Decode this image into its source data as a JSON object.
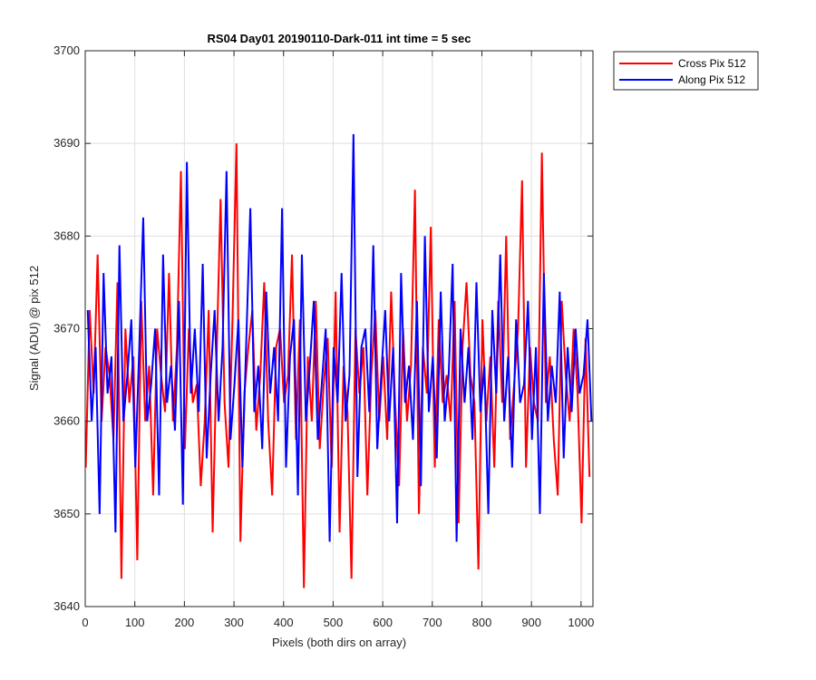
{
  "chart_data": {
    "type": "line",
    "title": "RS04 Day01 20190110-Dark-011 int time = 5 sec",
    "xlabel": "Pixels (both dirs on array)",
    "ylabel": "Signal (ADU) @ pix 512",
    "xlim": [
      0,
      1024
    ],
    "ylim": [
      3640,
      3700
    ],
    "xticks": [
      0,
      100,
      200,
      300,
      400,
      500,
      600,
      700,
      800,
      900,
      1000
    ],
    "yticks": [
      3640,
      3650,
      3660,
      3670,
      3680,
      3690,
      3700
    ],
    "grid": true,
    "legend_position": "outside-top-right",
    "series": [
      {
        "name": "Cross Pix 512",
        "color": "#ff0000",
        "x_start": 1,
        "x_step": 8,
        "values": [
          3655,
          3672,
          3663,
          3678,
          3660,
          3668,
          3665,
          3658,
          3675,
          3643,
          3670,
          3662,
          3667,
          3645,
          3673,
          3660,
          3666,
          3652,
          3670,
          3665,
          3661,
          3676,
          3660,
          3668,
          3687,
          3657,
          3670,
          3662,
          3664,
          3653,
          3660,
          3672,
          3648,
          3667,
          3684,
          3662,
          3655,
          3671,
          3690,
          3647,
          3663,
          3668,
          3672,
          3659,
          3665,
          3675,
          3660,
          3652,
          3668,
          3670,
          3662,
          3665,
          3678,
          3658,
          3671,
          3642,
          3667,
          3660,
          3673,
          3657,
          3664,
          3669,
          3655,
          3674,
          3648,
          3666,
          3661,
          3643,
          3670,
          3663,
          3668,
          3652,
          3665,
          3672,
          3660,
          3667,
          3658,
          3674,
          3662,
          3653,
          3670,
          3660,
          3666,
          3685,
          3650,
          3668,
          3663,
          3681,
          3655,
          3671,
          3662,
          3665,
          3660,
          3673,
          3649,
          3668,
          3675,
          3665,
          3662,
          3644,
          3671,
          3660,
          3667,
          3655,
          3673,
          3662,
          3680,
          3658,
          3664,
          3670,
          3686,
          3655,
          3668,
          3662,
          3660,
          3689,
          3662,
          3667,
          3658,
          3652,
          3673,
          3665,
          3660,
          3670,
          3663,
          3649,
          3669,
          3654
        ]
      },
      {
        "name": "Along Pix 512",
        "color": "#0000ff",
        "x_start": 5,
        "x_step": 8,
        "values": [
          3672,
          3660,
          3668,
          3650,
          3676,
          3663,
          3667,
          3648,
          3679,
          3660,
          3665,
          3671,
          3655,
          3668,
          3682,
          3660,
          3664,
          3670,
          3652,
          3678,
          3662,
          3666,
          3659,
          3673,
          3651,
          3688,
          3663,
          3670,
          3661,
          3677,
          3656,
          3665,
          3672,
          3660,
          3668,
          3687,
          3658,
          3664,
          3671,
          3655,
          3669,
          3683,
          3661,
          3666,
          3657,
          3674,
          3663,
          3668,
          3660,
          3683,
          3655,
          3667,
          3671,
          3652,
          3678,
          3660,
          3666,
          3673,
          3658,
          3664,
          3670,
          3647,
          3668,
          3662,
          3676,
          3660,
          3665,
          3691,
          3654,
          3668,
          3670,
          3661,
          3679,
          3657,
          3665,
          3672,
          3660,
          3668,
          3649,
          3676,
          3662,
          3666,
          3658,
          3673,
          3653,
          3680,
          3661,
          3667,
          3656,
          3674,
          3660,
          3665,
          3677,
          3647,
          3670,
          3662,
          3668,
          3658,
          3675,
          3661,
          3666,
          3650,
          3672,
          3663,
          3678,
          3660,
          3667,
          3655,
          3671,
          3662,
          3664,
          3673,
          3658,
          3668,
          3650,
          3676,
          3660,
          3666,
          3662,
          3674,
          3656,
          3668,
          3661,
          3670,
          3663,
          3665,
          3671,
          3660
        ]
      }
    ]
  }
}
